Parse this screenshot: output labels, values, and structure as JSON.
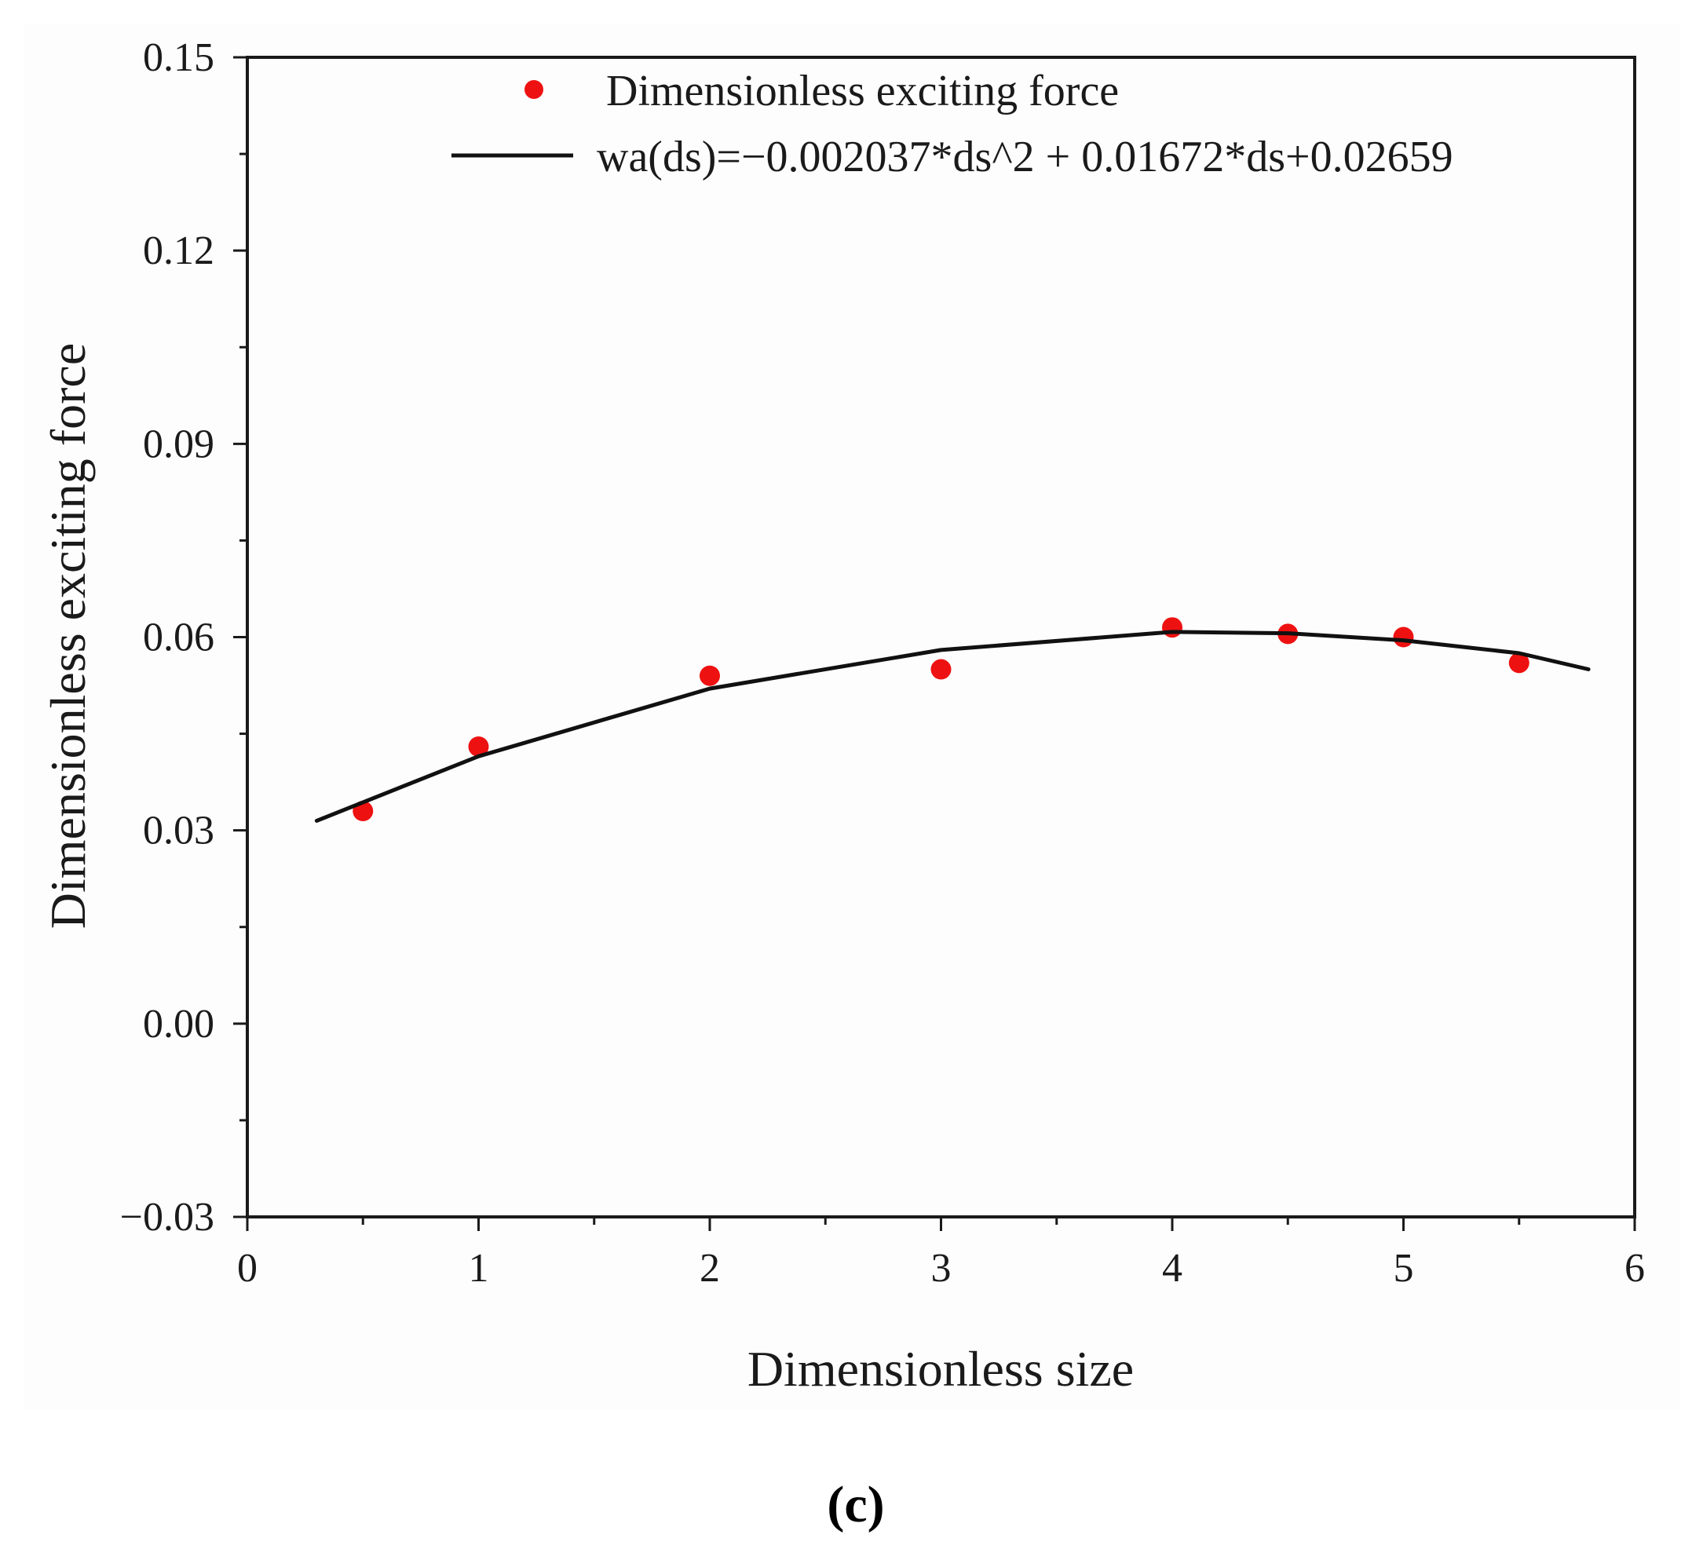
{
  "chart_data": {
    "type": "scatter",
    "title": "",
    "xlabel": "Dimensionless size",
    "ylabel": "Dimensionless exciting force",
    "xlim": [
      0,
      6
    ],
    "ylim": [
      -0.03,
      0.15
    ],
    "x_ticks": [
      0,
      1,
      2,
      3,
      4,
      5,
      6
    ],
    "x_tick_labels": [
      "0",
      "1",
      "2",
      "3",
      "4",
      "5",
      "6"
    ],
    "y_ticks": [
      -0.03,
      0.0,
      0.03,
      0.06,
      0.09,
      0.12,
      0.15
    ],
    "y_tick_labels": [
      "−0.03",
      "0.00",
      "0.03",
      "0.06",
      "0.09",
      "0.12",
      "0.15"
    ],
    "legend_position": "top",
    "grid": false,
    "series": [
      {
        "name": "Dimensionless exciting force",
        "kind": "scatter",
        "color": "#ee1111",
        "x": [
          0.5,
          1.0,
          2.0,
          3.0,
          4.0,
          4.5,
          5.0,
          5.5
        ],
        "y": [
          0.033,
          0.043,
          0.054,
          0.055,
          0.0615,
          0.0605,
          0.06,
          0.056
        ]
      },
      {
        "name": "wa(ds)=−0.002037*ds^2 + 0.01672*ds+0.02659",
        "kind": "line",
        "color": "#111111",
        "x": [
          0.3,
          1.0,
          2.0,
          3.0,
          4.0,
          4.5,
          5.0,
          5.5,
          5.8
        ],
        "y": [
          0.0315,
          0.0415,
          0.052,
          0.058,
          0.0608,
          0.0606,
          0.0595,
          0.0575,
          0.055
        ]
      }
    ]
  },
  "caption": "(c)"
}
